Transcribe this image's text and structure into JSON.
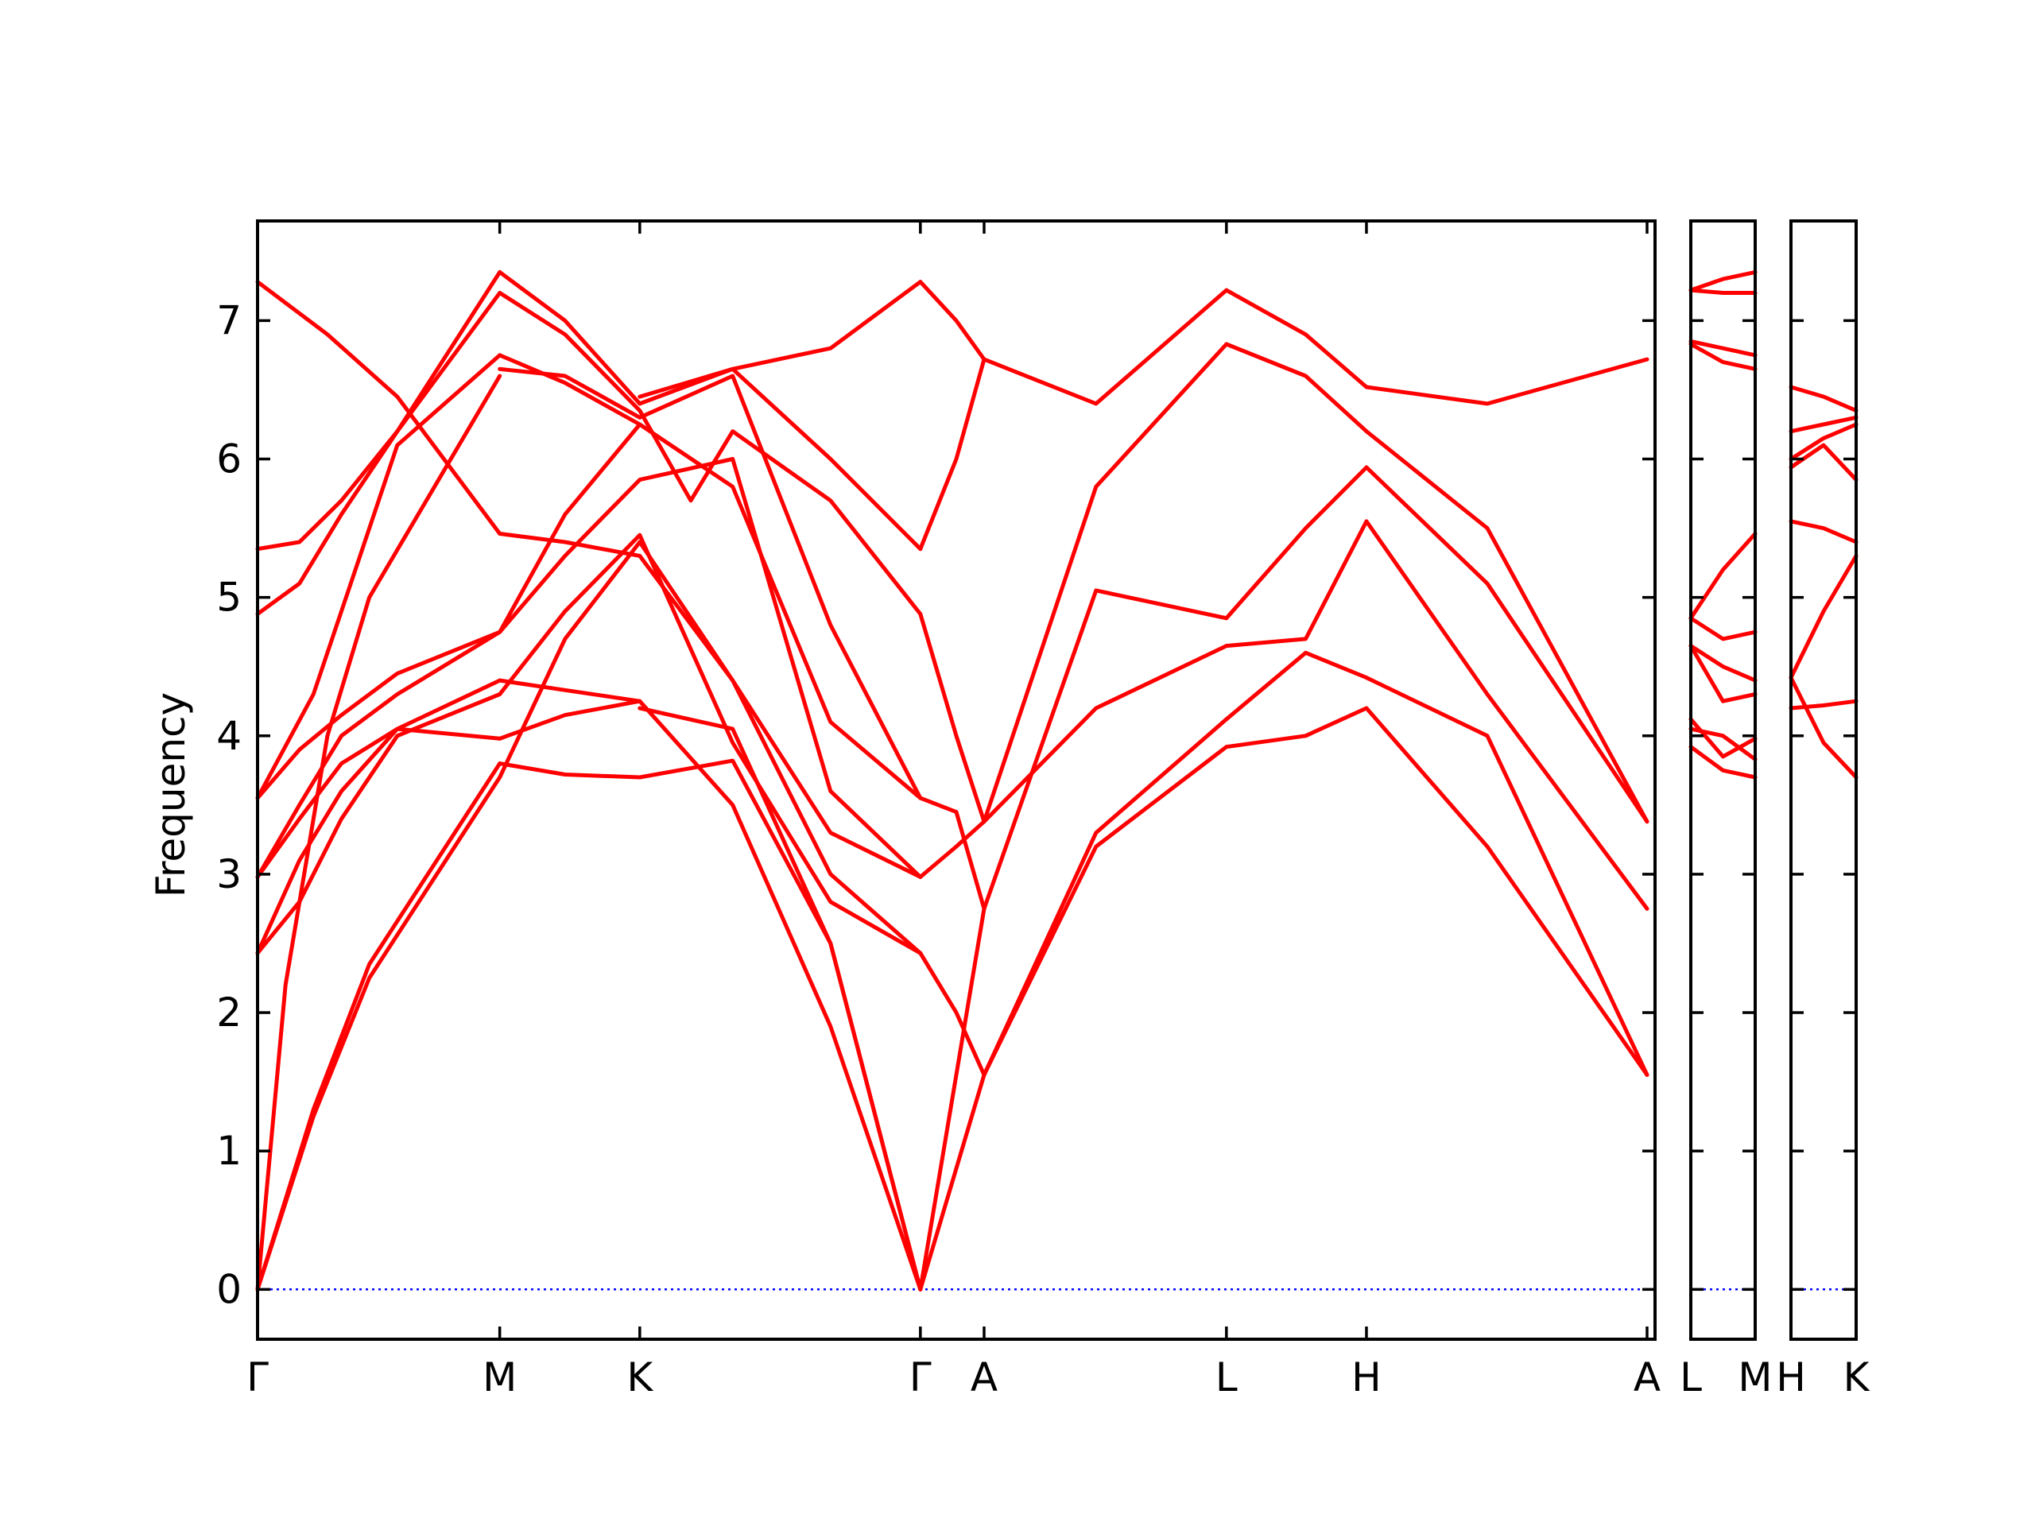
{
  "chart_data": {
    "type": "line",
    "ylabel": "Frequency",
    "ylim": [
      -0.36,
      7.72
    ],
    "y_ticks": [
      0,
      1,
      2,
      3,
      4,
      5,
      6,
      7
    ],
    "grid": false,
    "line_color": "#ff0000",
    "zero_line_color": "#0000ff",
    "panels": [
      {
        "x_range": [
          0,
          1
        ],
        "labels": [
          {
            "text": "Γ",
            "x": 0.0
          },
          {
            "text": "M",
            "x": 0.1733
          },
          {
            "text": "K",
            "x": 0.2735
          },
          {
            "text": "Γ",
            "x": 0.4743
          },
          {
            "text": "A",
            "x": 0.5199
          },
          {
            "text": "L",
            "x": 0.6933
          },
          {
            "text": "H",
            "x": 0.7935
          },
          {
            "text": "A",
            "x": 0.9943
          }
        ],
        "series": [
          {
            "x": [
              0,
              0.04,
              0.08,
              0.1733
            ],
            "y": [
              0,
              1.25,
              2.25,
              3.7
            ]
          },
          {
            "x": [
              0,
              0.04,
              0.08,
              0.1733
            ],
            "y": [
              0,
              1.3,
              2.35,
              3.8
            ]
          },
          {
            "x": [
              0,
              0.02,
              0.05,
              0.08,
              0.1733
            ],
            "y": [
              0,
              2.2,
              4.0,
              5.0,
              6.6
            ]
          },
          {
            "x": [
              0,
              0.03,
              0.06,
              0.1,
              0.1733
            ],
            "y": [
              2.43,
              2.8,
              3.4,
              4.0,
              4.3
            ]
          },
          {
            "x": [
              0,
              0.03,
              0.06,
              0.1,
              0.1733
            ],
            "y": [
              2.43,
              3.1,
              3.6,
              4.05,
              4.4
            ]
          },
          {
            "x": [
              0,
              0.03,
              0.06,
              0.1,
              0.1733
            ],
            "y": [
              2.98,
              3.4,
              3.8,
              4.05,
              3.98
            ]
          },
          {
            "x": [
              0,
              0.03,
              0.06,
              0.1,
              0.1733
            ],
            "y": [
              2.98,
              3.5,
              4.0,
              4.3,
              4.75
            ]
          },
          {
            "x": [
              0,
              0.03,
              0.06,
              0.1,
              0.1733
            ],
            "y": [
              3.55,
              3.9,
              4.15,
              4.45,
              4.75
            ]
          },
          {
            "x": [
              0,
              0.04,
              0.07,
              0.1,
              0.1733
            ],
            "y": [
              3.55,
              4.3,
              5.2,
              6.1,
              6.75
            ]
          },
          {
            "x": [
              0,
              0.03,
              0.06,
              0.1,
              0.1733
            ],
            "y": [
              4.88,
              5.1,
              5.6,
              6.2,
              7.2
            ]
          },
          {
            "x": [
              0,
              0.03,
              0.06,
              0.1,
              0.1733
            ],
            "y": [
              5.35,
              5.4,
              5.7,
              6.2,
              7.35
            ]
          },
          {
            "x": [
              0,
              0.05,
              0.1,
              0.1733
            ],
            "y": [
              7.28,
              6.9,
              6.45,
              5.46
            ]
          },
          {
            "x": [
              0.1733,
              0.22,
              0.2735
            ],
            "y": [
              3.7,
              4.7,
              5.4
            ]
          },
          {
            "x": [
              0.1733,
              0.22,
              0.2735
            ],
            "y": [
              3.8,
              3.72,
              3.7
            ]
          },
          {
            "x": [
              0.1733,
              0.22,
              0.2735
            ],
            "y": [
              3.98,
              4.15,
              4.25
            ]
          },
          {
            "x": [
              0.1733,
              0.22,
              0.2735
            ],
            "y": [
              4.3,
              4.9,
              5.45
            ]
          },
          {
            "x": [
              0.1733,
              0.22,
              0.2735
            ],
            "y": [
              4.4,
              4.33,
              4.25
            ]
          },
          {
            "x": [
              0.1733,
              0.22,
              0.2735
            ],
            "y": [
              4.75,
              5.3,
              5.85
            ]
          },
          {
            "x": [
              0.1733,
              0.22,
              0.2735
            ],
            "y": [
              4.75,
              5.6,
              6.25
            ]
          },
          {
            "x": [
              0.1733,
              0.22,
              0.2735
            ],
            "y": [
              5.46,
              5.4,
              5.3
            ]
          },
          {
            "x": [
              0.1733,
              0.22,
              0.2735
            ],
            "y": [
              6.65,
              6.6,
              6.3
            ]
          },
          {
            "x": [
              0.1733,
              0.22,
              0.2735
            ],
            "y": [
              6.75,
              6.55,
              6.25
            ]
          },
          {
            "x": [
              0.1733,
              0.22,
              0.2735
            ],
            "y": [
              7.2,
              6.9,
              6.35
            ]
          },
          {
            "x": [
              0.1733,
              0.22,
              0.2735
            ],
            "y": [
              7.35,
              7.0,
              6.4
            ]
          },
          {
            "x": [
              0.2735,
              0.34,
              0.41,
              0.4743
            ],
            "y": [
              3.7,
              3.82,
              2.5,
              0
            ]
          },
          {
            "x": [
              0.2735,
              0.34,
              0.41,
              0.4743
            ],
            "y": [
              4.25,
              3.5,
              1.9,
              0
            ]
          },
          {
            "x": [
              0.2735,
              0.34,
              0.41,
              0.4743
            ],
            "y": [
              4.2,
              4.05,
              2.5,
              0
            ]
          },
          {
            "x": [
              0.2735,
              0.34,
              0.41,
              0.4743
            ],
            "y": [
              5.45,
              3.95,
              2.8,
              2.43
            ]
          },
          {
            "x": [
              0.2735,
              0.34,
              0.41,
              0.4743
            ],
            "y": [
              5.4,
              4.4,
              3.0,
              2.43
            ]
          },
          {
            "x": [
              0.2735,
              0.34,
              0.41,
              0.4743
            ],
            "y": [
              5.3,
              4.4,
              3.3,
              2.98
            ]
          },
          {
            "x": [
              0.2735,
              0.34,
              0.41,
              0.4743
            ],
            "y": [
              5.85,
              6.0,
              3.6,
              2.98
            ]
          },
          {
            "x": [
              0.2735,
              0.34,
              0.41,
              0.4743
            ],
            "y": [
              6.25,
              5.8,
              4.1,
              3.55
            ]
          },
          {
            "x": [
              0.2735,
              0.34,
              0.41,
              0.4743
            ],
            "y": [
              6.3,
              6.6,
              4.8,
              3.55
            ]
          },
          {
            "x": [
              0.2735,
              0.31,
              0.34,
              0.41,
              0.4743
            ],
            "y": [
              6.35,
              5.7,
              6.2,
              5.7,
              4.88
            ]
          },
          {
            "x": [
              0.2735,
              0.34,
              0.41,
              0.4743
            ],
            "y": [
              6.4,
              6.65,
              6.0,
              5.35
            ]
          },
          {
            "x": [
              0.2735,
              0.34,
              0.41,
              0.4743
            ],
            "y": [
              6.45,
              6.65,
              6.8,
              7.28
            ]
          },
          {
            "x": [
              0.4743,
              0.5199
            ],
            "y": [
              0,
              1.55
            ]
          },
          {
            "x": [
              0.4743,
              0.5199
            ],
            "y": [
              0,
              2.75
            ]
          },
          {
            "x": [
              0.4743,
              0.5,
              0.5199
            ],
            "y": [
              2.43,
              2.0,
              1.55
            ]
          },
          {
            "x": [
              0.4743,
              0.5,
              0.5199
            ],
            "y": [
              2.98,
              3.2,
              3.38
            ]
          },
          {
            "x": [
              0.4743,
              0.5,
              0.5199
            ],
            "y": [
              3.55,
              3.45,
              2.75
            ]
          },
          {
            "x": [
              0.4743,
              0.5,
              0.5199
            ],
            "y": [
              4.88,
              4.0,
              3.38
            ]
          },
          {
            "x": [
              0.4743,
              0.5,
              0.5199
            ],
            "y": [
              5.35,
              6.0,
              6.72
            ]
          },
          {
            "x": [
              0.4743,
              0.5,
              0.5199
            ],
            "y": [
              7.28,
              7.0,
              6.72
            ]
          },
          {
            "x": [
              0.5199,
              0.6,
              0.6933
            ],
            "y": [
              1.55,
              3.2,
              3.92
            ]
          },
          {
            "x": [
              0.5199,
              0.6,
              0.6933
            ],
            "y": [
              1.55,
              3.3,
              4.12
            ]
          },
          {
            "x": [
              0.5199,
              0.6,
              0.6933
            ],
            "y": [
              2.75,
              5.05,
              4.85
            ]
          },
          {
            "x": [
              0.5199,
              0.6,
              0.6933
            ],
            "y": [
              3.38,
              4.2,
              4.65
            ]
          },
          {
            "x": [
              0.5199,
              0.6,
              0.6933
            ],
            "y": [
              3.38,
              5.8,
              6.83
            ]
          },
          {
            "x": [
              0.5199,
              0.6,
              0.6933
            ],
            "y": [
              6.72,
              6.4,
              7.22
            ]
          },
          {
            "x": [
              0.6933,
              0.75,
              0.7935
            ],
            "y": [
              3.92,
              4.0,
              4.2
            ]
          },
          {
            "x": [
              0.6933,
              0.75,
              0.7935
            ],
            "y": [
              4.12,
              4.6,
              4.42
            ]
          },
          {
            "x": [
              0.6933,
              0.75,
              0.7935
            ],
            "y": [
              4.65,
              4.7,
              5.55
            ]
          },
          {
            "x": [
              0.6933,
              0.75,
              0.7935
            ],
            "y": [
              4.85,
              5.5,
              5.94
            ]
          },
          {
            "x": [
              0.6933,
              0.75,
              0.7935
            ],
            "y": [
              6.83,
              6.6,
              6.2
            ]
          },
          {
            "x": [
              0.6933,
              0.75,
              0.7935
            ],
            "y": [
              7.22,
              6.9,
              6.52
            ]
          },
          {
            "x": [
              0.7935,
              0.88,
              0.9943
            ],
            "y": [
              4.2,
              3.2,
              1.55
            ]
          },
          {
            "x": [
              0.7935,
              0.88,
              0.9943
            ],
            "y": [
              4.42,
              4.0,
              1.55
            ]
          },
          {
            "x": [
              0.7935,
              0.88,
              0.9943
            ],
            "y": [
              5.55,
              4.3,
              2.75
            ]
          },
          {
            "x": [
              0.7935,
              0.88,
              0.9943
            ],
            "y": [
              5.94,
              5.1,
              3.38
            ]
          },
          {
            "x": [
              0.7935,
              0.88,
              0.9943
            ],
            "y": [
              6.2,
              5.5,
              3.38
            ]
          },
          {
            "x": [
              0.7935,
              0.88,
              0.9943
            ],
            "y": [
              6.52,
              6.4,
              6.72
            ]
          }
        ]
      },
      {
        "x_range": [
          0,
          1
        ],
        "labels": [
          {
            "text": "L",
            "x": 0.0
          },
          {
            "text": "M",
            "x": 1.0
          }
        ],
        "series": [
          {
            "x": [
              0,
              0.5,
              1
            ],
            "y": [
              3.92,
              3.75,
              3.7
            ]
          },
          {
            "x": [
              0,
              0.5,
              1
            ],
            "y": [
              4.05,
              4.0,
              3.83
            ]
          },
          {
            "x": [
              0,
              0.5,
              1
            ],
            "y": [
              4.12,
              3.85,
              3.98
            ]
          },
          {
            "x": [
              0,
              0.5,
              1
            ],
            "y": [
              4.65,
              4.25,
              4.3
            ]
          },
          {
            "x": [
              0,
              0.5,
              1
            ],
            "y": [
              4.65,
              4.5,
              4.4
            ]
          },
          {
            "x": [
              0,
              0.5,
              1
            ],
            "y": [
              4.85,
              4.7,
              4.75
            ]
          },
          {
            "x": [
              0,
              0.5,
              1
            ],
            "y": [
              4.85,
              5.2,
              5.46
            ]
          },
          {
            "x": [
              0,
              0.5,
              1
            ],
            "y": [
              6.83,
              6.7,
              6.65
            ]
          },
          {
            "x": [
              0,
              0.5,
              1
            ],
            "y": [
              6.85,
              6.8,
              6.75
            ]
          },
          {
            "x": [
              0,
              0.5,
              1
            ],
            "y": [
              7.22,
              7.2,
              7.2
            ]
          },
          {
            "x": [
              0,
              0.5,
              1
            ],
            "y": [
              7.22,
              7.3,
              7.35
            ]
          }
        ]
      },
      {
        "x_range": [
          0,
          1
        ],
        "labels": [
          {
            "text": "H",
            "x": 0.0
          },
          {
            "text": "K",
            "x": 1.0
          }
        ],
        "series": [
          {
            "x": [
              0,
              0.5,
              1
            ],
            "y": [
              4.42,
              3.95,
              3.7
            ]
          },
          {
            "x": [
              0,
              0.5,
              1
            ],
            "y": [
              4.2,
              4.22,
              4.25
            ]
          },
          {
            "x": [
              0,
              0.5,
              1
            ],
            "y": [
              4.42,
              4.9,
              5.3
            ]
          },
          {
            "x": [
              0,
              0.5,
              1
            ],
            "y": [
              5.55,
              5.5,
              5.4
            ]
          },
          {
            "x": [
              0,
              0.5,
              1
            ],
            "y": [
              5.94,
              6.1,
              5.85
            ]
          },
          {
            "x": [
              0,
              0.5,
              1
            ],
            "y": [
              6.0,
              6.15,
              6.25
            ]
          },
          {
            "x": [
              0,
              0.5,
              1
            ],
            "y": [
              6.2,
              6.25,
              6.3
            ]
          },
          {
            "x": [
              0,
              0.5,
              1
            ],
            "y": [
              6.52,
              6.45,
              6.35
            ]
          }
        ]
      }
    ]
  }
}
